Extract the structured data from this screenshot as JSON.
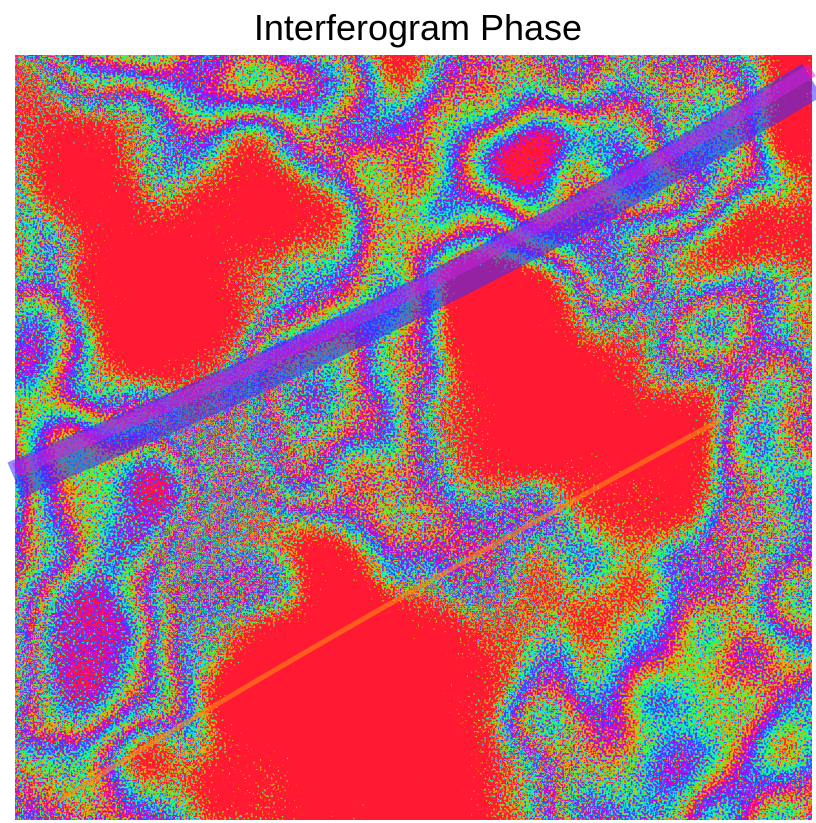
{
  "title": "Interferogram Phase"
}
